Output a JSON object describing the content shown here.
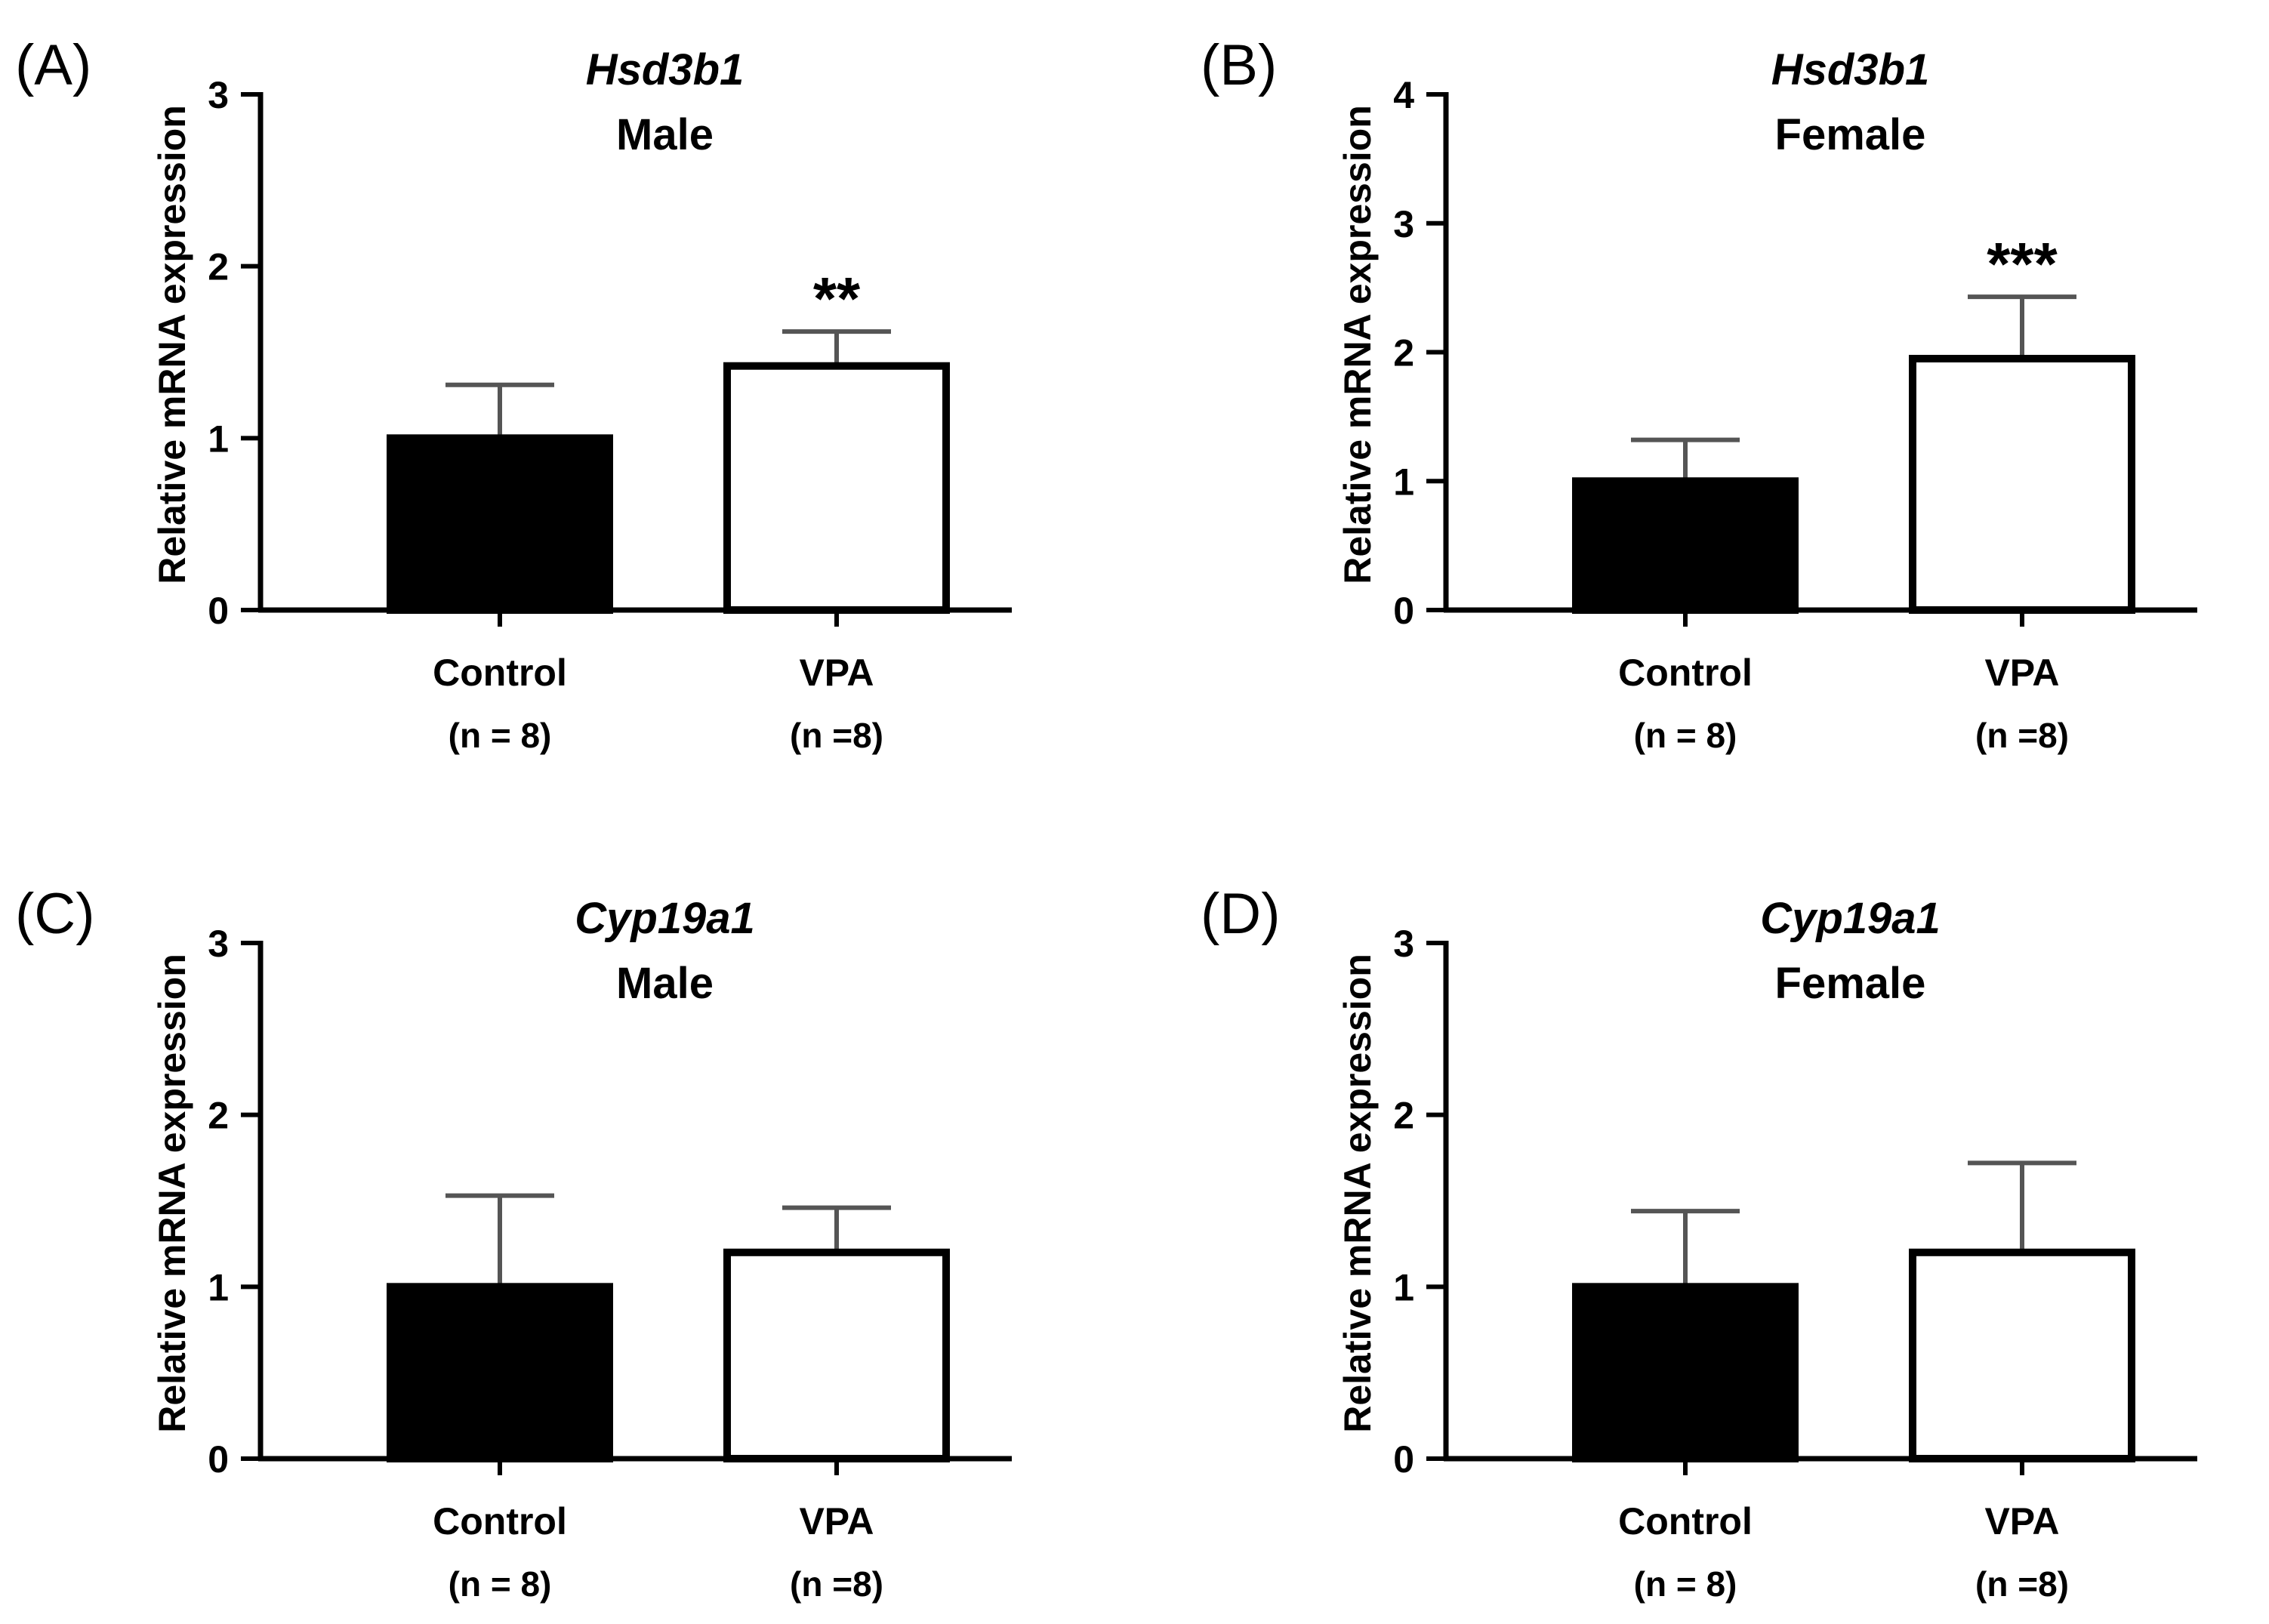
{
  "chart_data": [
    {
      "panel": "(A)",
      "type": "bar",
      "title": "Hsd3b1",
      "subtitle": "Male",
      "ylabel": "Relative mRNA expression",
      "ylim": [
        0,
        3
      ],
      "yticks": [
        0,
        1,
        2,
        3
      ],
      "categories": [
        "Control",
        "VPA"
      ],
      "n_labels": [
        "(n = 8)",
        "(n =8)"
      ],
      "values": [
        1.0,
        1.42
      ],
      "errors": [
        0.31,
        0.2
      ],
      "significance": [
        "",
        "**"
      ],
      "fills": [
        "#000000",
        "#ffffff"
      ]
    },
    {
      "panel": "(B)",
      "type": "bar",
      "title": "Hsd3b1",
      "subtitle": "Female",
      "ylabel": "Relative mRNA expression",
      "ylim": [
        0,
        4
      ],
      "yticks": [
        0,
        1,
        2,
        3,
        4
      ],
      "categories": [
        "Control",
        "VPA"
      ],
      "n_labels": [
        "(n = 8)",
        "(n =8)"
      ],
      "values": [
        1.0,
        1.95
      ],
      "errors": [
        0.32,
        0.48
      ],
      "significance": [
        "",
        "***"
      ],
      "fills": [
        "#000000",
        "#ffffff"
      ]
    },
    {
      "panel": "(C)",
      "type": "bar",
      "title": "Cyp19a1",
      "subtitle": "Male",
      "ylabel": "Relative mRNA expression",
      "ylim": [
        0,
        3
      ],
      "yticks": [
        0,
        1,
        2,
        3
      ],
      "categories": [
        "Control",
        "VPA"
      ],
      "n_labels": [
        "(n = 8)",
        "(n =8)"
      ],
      "values": [
        1.0,
        1.2
      ],
      "errors": [
        0.53,
        0.26
      ],
      "significance": [
        "",
        ""
      ],
      "fills": [
        "#000000",
        "#ffffff"
      ]
    },
    {
      "panel": "(D)",
      "type": "bar",
      "title": "Cyp19a1",
      "subtitle": "Female",
      "ylabel": "Relative mRNA expression",
      "ylim": [
        0,
        3
      ],
      "yticks": [
        0,
        1,
        2,
        3
      ],
      "categories": [
        "Control",
        "VPA"
      ],
      "n_labels": [
        "(n = 8)",
        "(n =8)"
      ],
      "values": [
        1.0,
        1.2
      ],
      "errors": [
        0.44,
        0.52
      ],
      "significance": [
        "",
        ""
      ],
      "fills": [
        "#000000",
        "#ffffff"
      ]
    }
  ]
}
